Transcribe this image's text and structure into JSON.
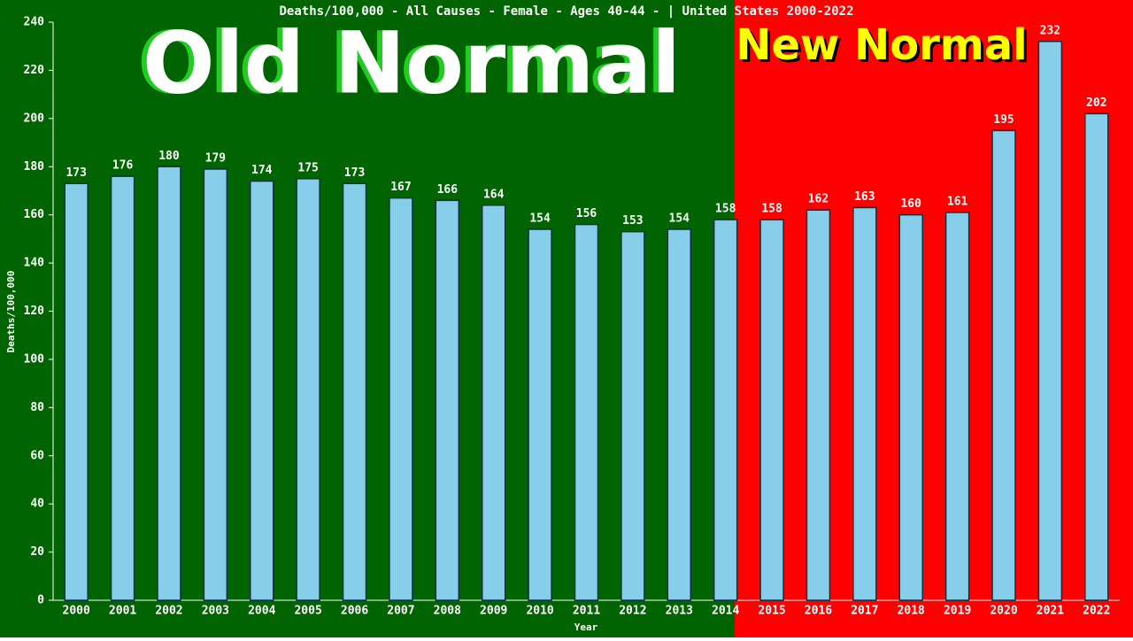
{
  "chart_data": {
    "type": "bar",
    "title": "Deaths/100,000 - All Causes - Female - Ages 40-44 -  | United States 2000-2022",
    "x_label": "Year",
    "y_label": "Deaths/100,000",
    "annotations": [
      "Old Normal",
      "New Normal"
    ],
    "categories": [
      "2000",
      "2001",
      "2002",
      "2003",
      "2004",
      "2005",
      "2006",
      "2007",
      "2008",
      "2009",
      "2010",
      "2011",
      "2012",
      "2013",
      "2014",
      "2015",
      "2016",
      "2017",
      "2018",
      "2019",
      "2020",
      "2021",
      "2022"
    ],
    "values": [
      173,
      176,
      180,
      179,
      174,
      175,
      173,
      167,
      166,
      164,
      154,
      156,
      153,
      154,
      158,
      158,
      162,
      163,
      160,
      161,
      195,
      232,
      202
    ],
    "color": "#87ceeb",
    "ylim": [
      0,
      240
    ],
    "yticks": [
      0,
      20,
      40,
      60,
      80,
      100,
      120,
      140,
      160,
      180,
      200,
      220,
      240
    ]
  }
}
